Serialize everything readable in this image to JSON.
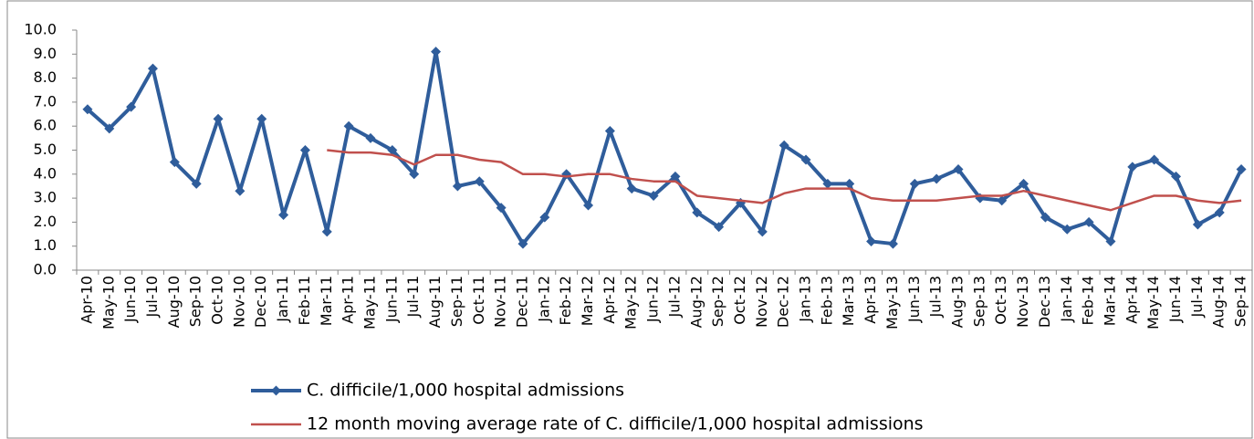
{
  "chart_data": {
    "type": "line",
    "categories": [
      "Apr-10",
      "May-10",
      "Jun-10",
      "Jul-10",
      "Aug-10",
      "Sep-10",
      "Oct-10",
      "Nov-10",
      "Dec-10",
      "Jan-11",
      "Feb-11",
      "Mar-11",
      "Apr-11",
      "May-11",
      "Jun-11",
      "Jul-11",
      "Aug-11",
      "Sep-11",
      "Oct-11",
      "Nov-11",
      "Dec-11",
      "Jan-12",
      "Feb-12",
      "Mar-12",
      "Apr-12",
      "May-12",
      "Jun-12",
      "Jul-12",
      "Aug-12",
      "Sep-12",
      "Oct-12",
      "Nov-12",
      "Dec-12",
      "Jan-13",
      "Feb-13",
      "Mar-13",
      "Apr-13",
      "May-13",
      "Jun-13",
      "Jul-13",
      "Aug-13",
      "Sep-13",
      "Oct-13",
      "Nov-13",
      "Dec-13",
      "Jan-14",
      "Feb-14",
      "Mar-14",
      "Apr-14",
      "May-14",
      "Jun-14",
      "Jul-14",
      "Aug-14",
      "Sep-14"
    ],
    "series": [
      {
        "name": "C. difficile/1,000 hospital admissions",
        "color": "#2f5d9b",
        "marker": "diamond",
        "values": [
          6.7,
          5.9,
          6.8,
          8.4,
          4.5,
          3.6,
          6.3,
          3.3,
          6.3,
          2.3,
          5.0,
          1.6,
          6.0,
          5.5,
          5.0,
          4.0,
          9.1,
          3.5,
          3.7,
          2.6,
          1.1,
          2.2,
          4.0,
          2.7,
          5.8,
          3.4,
          3.1,
          3.9,
          2.4,
          1.8,
          2.8,
          1.6,
          5.2,
          4.6,
          3.6,
          3.6,
          1.2,
          1.1,
          3.6,
          3.8,
          4.2,
          3.0,
          2.9,
          3.6,
          2.2,
          1.7,
          2.0,
          1.2,
          4.3,
          4.6,
          3.9,
          1.9,
          2.4,
          4.2
        ]
      },
      {
        "name": "12 month moving average rate of C. difficile/1,000 hospital admissions",
        "color": "#c0504d",
        "values": [
          null,
          null,
          null,
          null,
          null,
          null,
          null,
          null,
          null,
          null,
          null,
          5.0,
          4.9,
          4.9,
          4.8,
          4.4,
          4.8,
          4.8,
          4.6,
          4.5,
          4.0,
          4.0,
          3.9,
          4.0,
          4.0,
          3.8,
          3.7,
          3.7,
          3.1,
          3.0,
          2.9,
          2.8,
          3.2,
          3.4,
          3.4,
          3.4,
          3.0,
          2.9,
          2.9,
          2.9,
          3.0,
          3.1,
          3.1,
          3.3,
          3.1,
          2.9,
          2.7,
          2.5,
          2.8,
          3.1,
          3.1,
          2.9,
          2.8,
          2.9
        ]
      }
    ],
    "ylim": [
      0,
      10
    ],
    "yticks": [
      {
        "value": 0,
        "label": "0.0"
      },
      {
        "value": 1,
        "label": "1.0"
      },
      {
        "value": 2,
        "label": "2.0"
      },
      {
        "value": 3,
        "label": "3.0"
      },
      {
        "value": 4,
        "label": "4.0"
      },
      {
        "value": 5,
        "label": "5.0"
      },
      {
        "value": 6,
        "label": "6.0"
      },
      {
        "value": 7,
        "label": "7.0"
      },
      {
        "value": 8,
        "label": "8.0"
      },
      {
        "value": 9,
        "label": "9.0"
      },
      {
        "value": 10,
        "label": "10.0"
      }
    ],
    "legend": "bottom"
  }
}
